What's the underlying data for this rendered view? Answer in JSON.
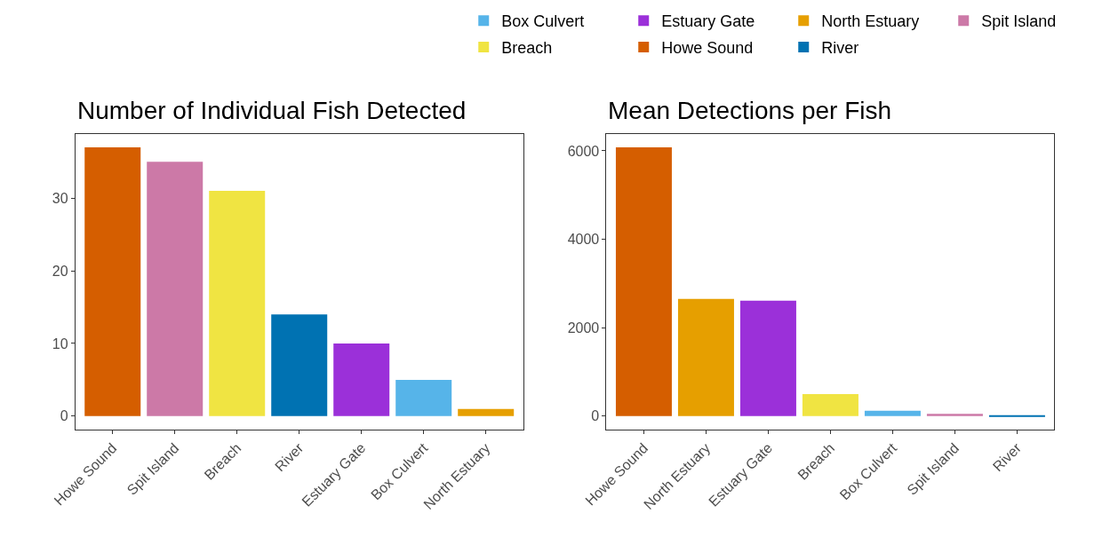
{
  "chart_data": [
    {
      "type": "bar",
      "title": "Number of Individual Fish Detected",
      "categories": [
        "Howe Sound",
        "Spit Island",
        "Breach",
        "River",
        "Estuary Gate",
        "Box Culvert",
        "North Estuary"
      ],
      "series": [
        {
          "name": "Box Culvert",
          "color": "#56b4e9",
          "values": [
            null,
            null,
            null,
            null,
            null,
            5,
            null
          ]
        },
        {
          "name": "Breach",
          "color": "#f0e442",
          "values": [
            null,
            null,
            31,
            null,
            null,
            null,
            null
          ]
        },
        {
          "name": "Estuary Gate",
          "color": "#9b30d9",
          "values": [
            null,
            null,
            null,
            null,
            10,
            null,
            null
          ]
        },
        {
          "name": "Howe Sound",
          "color": "#d55e00",
          "values": [
            37,
            null,
            null,
            null,
            null,
            null,
            null
          ]
        },
        {
          "name": "North Estuary",
          "color": "#e69f00",
          "values": [
            null,
            null,
            null,
            null,
            null,
            null,
            1
          ]
        },
        {
          "name": "River",
          "color": "#0072b2",
          "values": [
            null,
            null,
            null,
            14,
            null,
            null,
            null
          ]
        },
        {
          "name": "Spit Island",
          "color": "#cc79a7",
          "values": [
            null,
            35,
            null,
            null,
            null,
            null,
            null
          ]
        }
      ],
      "ylim": [
        -1.85,
        38.85
      ],
      "yticks": [
        0,
        10,
        20,
        30
      ],
      "legend": "top right"
    },
    {
      "type": "bar",
      "title": "Mean Detections per Fish",
      "categories": [
        "Howe Sound",
        "North Estuary",
        "Estuary Gate",
        "Breach",
        "Box Culvert",
        "Spit Island",
        "River"
      ],
      "series": [
        {
          "name": "Box Culvert",
          "color": "#56b4e9",
          "values": [
            null,
            null,
            null,
            null,
            120,
            null,
            null
          ]
        },
        {
          "name": "Breach",
          "color": "#f0e442",
          "values": [
            null,
            null,
            null,
            500,
            null,
            null,
            null
          ]
        },
        {
          "name": "Estuary Gate",
          "color": "#9b30d9",
          "values": [
            null,
            null,
            2610,
            null,
            null,
            null,
            null
          ]
        },
        {
          "name": "Howe Sound",
          "color": "#d55e00",
          "values": [
            6080,
            null,
            null,
            null,
            null,
            null,
            null
          ]
        },
        {
          "name": "North Estuary",
          "color": "#e69f00",
          "values": [
            null,
            2650,
            null,
            null,
            null,
            null,
            null
          ]
        },
        {
          "name": "River",
          "color": "#0072b2",
          "values": [
            null,
            null,
            null,
            null,
            null,
            null,
            5
          ]
        },
        {
          "name": "Spit Island",
          "color": "#cc79a7",
          "values": [
            null,
            null,
            null,
            null,
            null,
            50,
            null
          ]
        }
      ],
      "ylim": [
        -304,
        6384
      ],
      "yticks": [
        0,
        2000,
        4000,
        6000
      ],
      "legend": "top right"
    }
  ]
}
